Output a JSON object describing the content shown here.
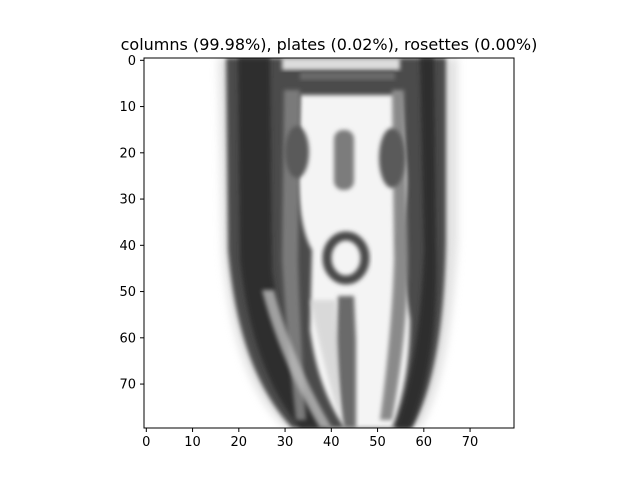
{
  "figure": {
    "title": "columns (99.98%), plates (0.02%), rosettes (0.00%)",
    "image_description_kind": "grayscale microscopy image of an ice crystal column",
    "colormap": "gray",
    "x_ticks": [
      "0",
      "10",
      "20",
      "30",
      "40",
      "50",
      "60",
      "70"
    ],
    "y_ticks": [
      "0",
      "10",
      "20",
      "30",
      "40",
      "50",
      "60",
      "70"
    ],
    "x_range": [
      -0.5,
      79.5
    ],
    "y_range": [
      79.5,
      -0.5
    ],
    "colors": {
      "background": "#ffffff",
      "axis": "#000000",
      "dark": "#3a3a3a",
      "mid": "#8a8a8a",
      "light": "#f2f2f2"
    }
  }
}
